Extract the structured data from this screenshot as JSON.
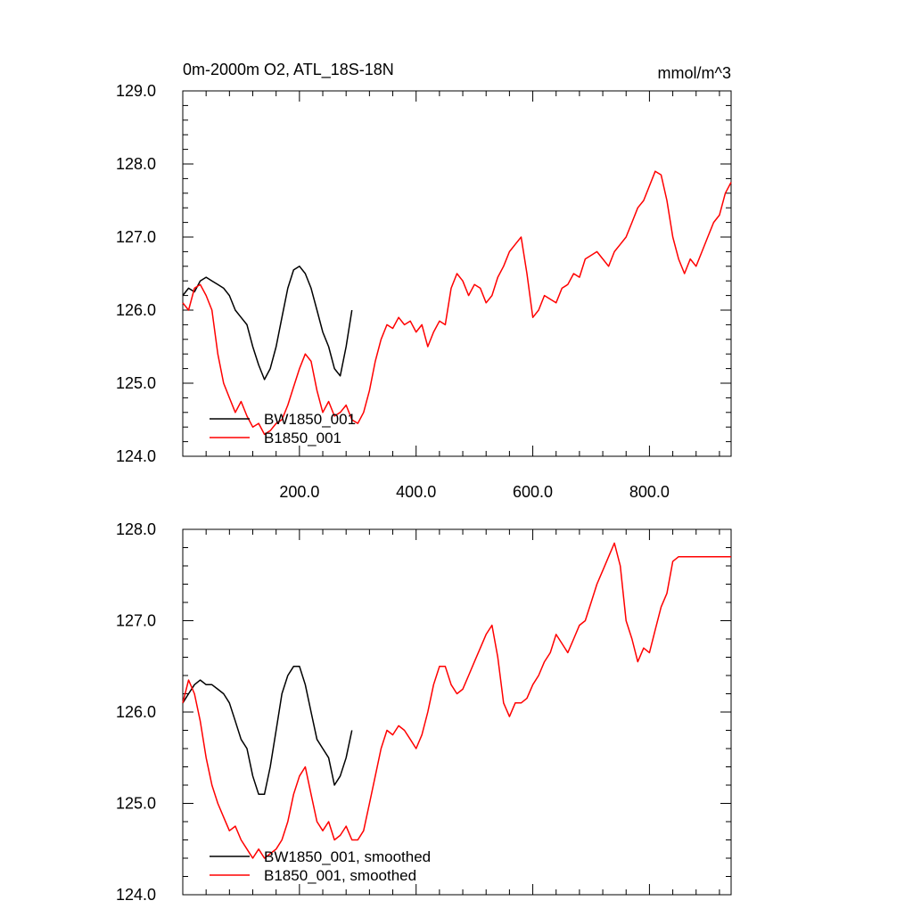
{
  "chart_data": [
    {
      "type": "line",
      "title": "0m-2000m O2, ATL_18S-18N",
      "units": "mmol/m^3",
      "xlabel": "",
      "ylabel": "",
      "xlim": [
        0,
        940
      ],
      "ylim": [
        124.0,
        129.0
      ],
      "yticks": [
        "124.0",
        "125.0",
        "126.0",
        "127.0",
        "128.0",
        "129.0"
      ],
      "xticks": [
        "200.0",
        "400.0",
        "600.0",
        "800.0"
      ],
      "legend_position": "lower-left",
      "series": [
        {
          "name": "BW1850_001",
          "color": "#000000",
          "x": [
            0,
            10,
            20,
            30,
            40,
            50,
            60,
            70,
            80,
            90,
            100,
            110,
            120,
            130,
            140,
            150,
            160,
            170,
            180,
            190,
            200,
            210,
            220,
            230,
            240,
            250,
            260,
            270,
            280,
            290
          ],
          "values": [
            126.2,
            126.3,
            126.25,
            126.4,
            126.45,
            126.4,
            126.35,
            126.3,
            126.2,
            126.0,
            125.9,
            125.8,
            125.5,
            125.25,
            125.05,
            125.2,
            125.5,
            125.9,
            126.3,
            126.55,
            126.6,
            126.5,
            126.3,
            126.0,
            125.7,
            125.5,
            125.2,
            125.1,
            125.5,
            126.0
          ]
        },
        {
          "name": "B1850_001",
          "color": "#ff0000",
          "x": [
            0,
            10,
            20,
            30,
            40,
            50,
            60,
            70,
            80,
            90,
            100,
            110,
            120,
            130,
            140,
            150,
            160,
            170,
            180,
            190,
            200,
            210,
            220,
            230,
            240,
            250,
            260,
            270,
            280,
            290,
            300,
            310,
            320,
            330,
            340,
            350,
            360,
            370,
            380,
            390,
            400,
            410,
            420,
            430,
            440,
            450,
            460,
            470,
            480,
            490,
            500,
            510,
            520,
            530,
            540,
            550,
            560,
            570,
            580,
            590,
            600,
            610,
            620,
            630,
            640,
            650,
            660,
            670,
            680,
            690,
            700,
            710,
            720,
            730,
            740,
            750,
            760,
            770,
            780,
            790,
            800,
            810,
            820,
            830,
            840,
            850,
            860,
            870,
            880,
            890,
            900,
            910,
            920,
            930,
            940
          ],
          "values": [
            126.1,
            126.0,
            126.3,
            126.35,
            126.2,
            126.0,
            125.4,
            125.0,
            124.8,
            124.6,
            124.75,
            124.55,
            124.4,
            124.45,
            124.3,
            124.35,
            124.45,
            124.5,
            124.7,
            124.95,
            125.2,
            125.4,
            125.3,
            124.9,
            124.6,
            124.75,
            124.55,
            124.6,
            124.7,
            124.5,
            124.45,
            124.6,
            124.9,
            125.3,
            125.6,
            125.8,
            125.75,
            125.9,
            125.8,
            125.85,
            125.7,
            125.8,
            125.5,
            125.7,
            125.85,
            125.8,
            126.3,
            126.5,
            126.4,
            126.2,
            126.35,
            126.3,
            126.1,
            126.2,
            126.45,
            126.6,
            126.8,
            126.9,
            127.0,
            126.5,
            125.9,
            126.0,
            126.2,
            126.15,
            126.1,
            126.3,
            126.35,
            126.5,
            126.45,
            126.7,
            126.75,
            126.8,
            126.7,
            126.6,
            126.8,
            126.9,
            127.0,
            127.2,
            127.4,
            127.5,
            127.7,
            127.9,
            127.85,
            127.5,
            127.0,
            126.7,
            126.5,
            126.7,
            126.6,
            126.8,
            127.0,
            127.2,
            127.3,
            127.6,
            127.75
          ]
        }
      ]
    },
    {
      "type": "line",
      "title": "",
      "xlabel": "",
      "ylabel": "",
      "xlim": [
        0,
        940
      ],
      "ylim": [
        124.0,
        128.0
      ],
      "yticks": [
        "124.0",
        "125.0",
        "126.0",
        "127.0",
        "128.0"
      ],
      "legend_position": "lower-left",
      "series": [
        {
          "name": "BW1850_001, smoothed",
          "color": "#000000",
          "x": [
            0,
            10,
            20,
            30,
            40,
            50,
            60,
            70,
            80,
            90,
            100,
            110,
            120,
            130,
            140,
            150,
            160,
            170,
            180,
            190,
            200,
            210,
            220,
            230,
            240,
            250,
            260,
            270,
            280,
            290
          ],
          "values": [
            126.1,
            126.2,
            126.3,
            126.35,
            126.3,
            126.3,
            126.25,
            126.2,
            126.1,
            125.9,
            125.7,
            125.6,
            125.3,
            125.1,
            125.1,
            125.4,
            125.8,
            126.2,
            126.4,
            126.5,
            126.5,
            126.3,
            126.0,
            125.7,
            125.6,
            125.5,
            125.2,
            125.3,
            125.5,
            125.8
          ]
        },
        {
          "name": "B1850_001, smoothed",
          "color": "#ff0000",
          "x": [
            0,
            10,
            20,
            30,
            40,
            50,
            60,
            70,
            80,
            90,
            100,
            110,
            120,
            130,
            140,
            150,
            160,
            170,
            180,
            190,
            200,
            210,
            220,
            230,
            240,
            250,
            260,
            270,
            280,
            290,
            300,
            310,
            320,
            330,
            340,
            350,
            360,
            370,
            380,
            390,
            400,
            410,
            420,
            430,
            440,
            450,
            460,
            470,
            480,
            490,
            500,
            510,
            520,
            530,
            540,
            550,
            560,
            570,
            580,
            590,
            600,
            610,
            620,
            630,
            640,
            650,
            660,
            670,
            680,
            690,
            700,
            710,
            720,
            730,
            740,
            750,
            760,
            770,
            780,
            790,
            800,
            810,
            820,
            830,
            840,
            850,
            860,
            870,
            880,
            890,
            900,
            910,
            920,
            930,
            940
          ],
          "values": [
            126.1,
            126.35,
            126.2,
            125.9,
            125.5,
            125.2,
            125.0,
            124.85,
            124.7,
            124.75,
            124.6,
            124.5,
            124.4,
            124.5,
            124.4,
            124.45,
            124.5,
            124.6,
            124.8,
            125.1,
            125.3,
            125.4,
            125.1,
            124.8,
            124.7,
            124.8,
            124.6,
            124.65,
            124.75,
            124.6,
            124.6,
            124.7,
            125.0,
            125.3,
            125.6,
            125.8,
            125.75,
            125.85,
            125.8,
            125.7,
            125.6,
            125.75,
            126.0,
            126.3,
            126.5,
            126.5,
            126.3,
            126.2,
            126.25,
            126.4,
            126.55,
            126.7,
            126.85,
            126.95,
            126.6,
            126.1,
            125.95,
            126.1,
            126.1,
            126.15,
            126.3,
            126.4,
            126.55,
            126.65,
            126.85,
            126.75,
            126.65,
            126.8,
            126.95,
            127.0,
            127.2,
            127.4,
            127.55,
            127.7,
            127.85,
            127.6,
            127.0,
            126.8,
            126.55,
            126.7,
            126.65,
            126.9,
            127.15,
            127.3,
            127.65,
            127.7,
            127.7,
            127.7,
            127.7,
            127.7,
            127.7,
            127.7,
            127.7,
            127.7,
            127.7
          ]
        }
      ]
    }
  ]
}
